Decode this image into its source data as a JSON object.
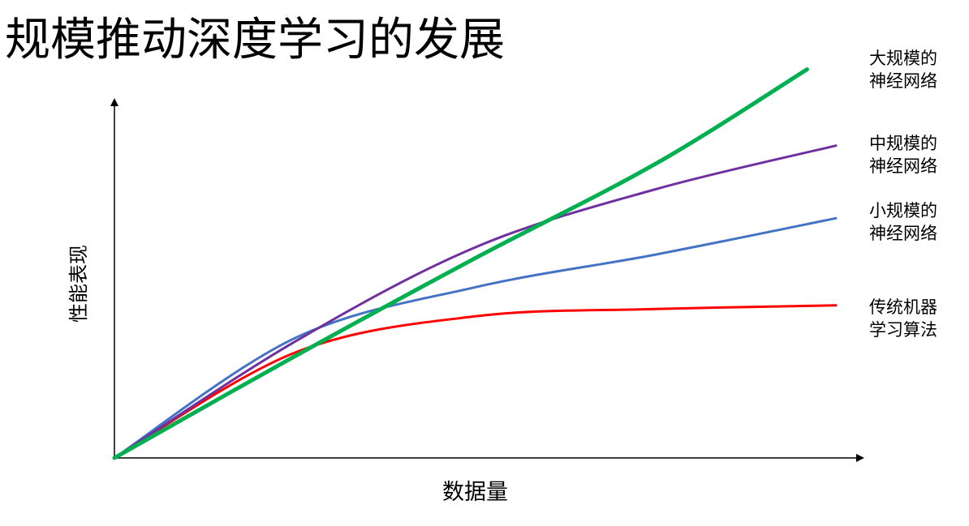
{
  "title": "规模推动深度学习的发展",
  "chart_data": {
    "type": "line",
    "xlabel": "数据量",
    "ylabel": "性能表现",
    "xlim": [
      0,
      100
    ],
    "ylim": [
      0,
      100
    ],
    "axis_ticks": "none",
    "grid": false,
    "legend_placement": "right (labels next to line ends)",
    "series": [
      {
        "name": "大规模的 神经网络",
        "label_lines": [
          "大规模的",
          "神经网络"
        ],
        "color": "#00b050",
        "x": [
          0,
          25,
          50,
          75,
          96
        ],
        "y": [
          0,
          28,
          55,
          81,
          107
        ]
      },
      {
        "name": "中规模的 神经网络",
        "label_lines": [
          "中规模的",
          "神经网络"
        ],
        "color": "#7030a0",
        "x": [
          0,
          25,
          50,
          75,
          100
        ],
        "y": [
          0,
          32,
          58,
          74,
          86
        ]
      },
      {
        "name": "小规模的 神经网络",
        "label_lines": [
          "小规模的",
          "神经网络"
        ],
        "color": "#4472c4",
        "x": [
          0,
          25,
          50,
          75,
          100
        ],
        "y": [
          0,
          33,
          47,
          56,
          66
        ]
      },
      {
        "name": "传统机器 学习算法",
        "label_lines": [
          "传统机器",
          "学习算法"
        ],
        "color": "#ff0000",
        "x": [
          0,
          25,
          50,
          75,
          100
        ],
        "y": [
          0,
          29,
          39,
          41,
          42
        ]
      }
    ]
  }
}
